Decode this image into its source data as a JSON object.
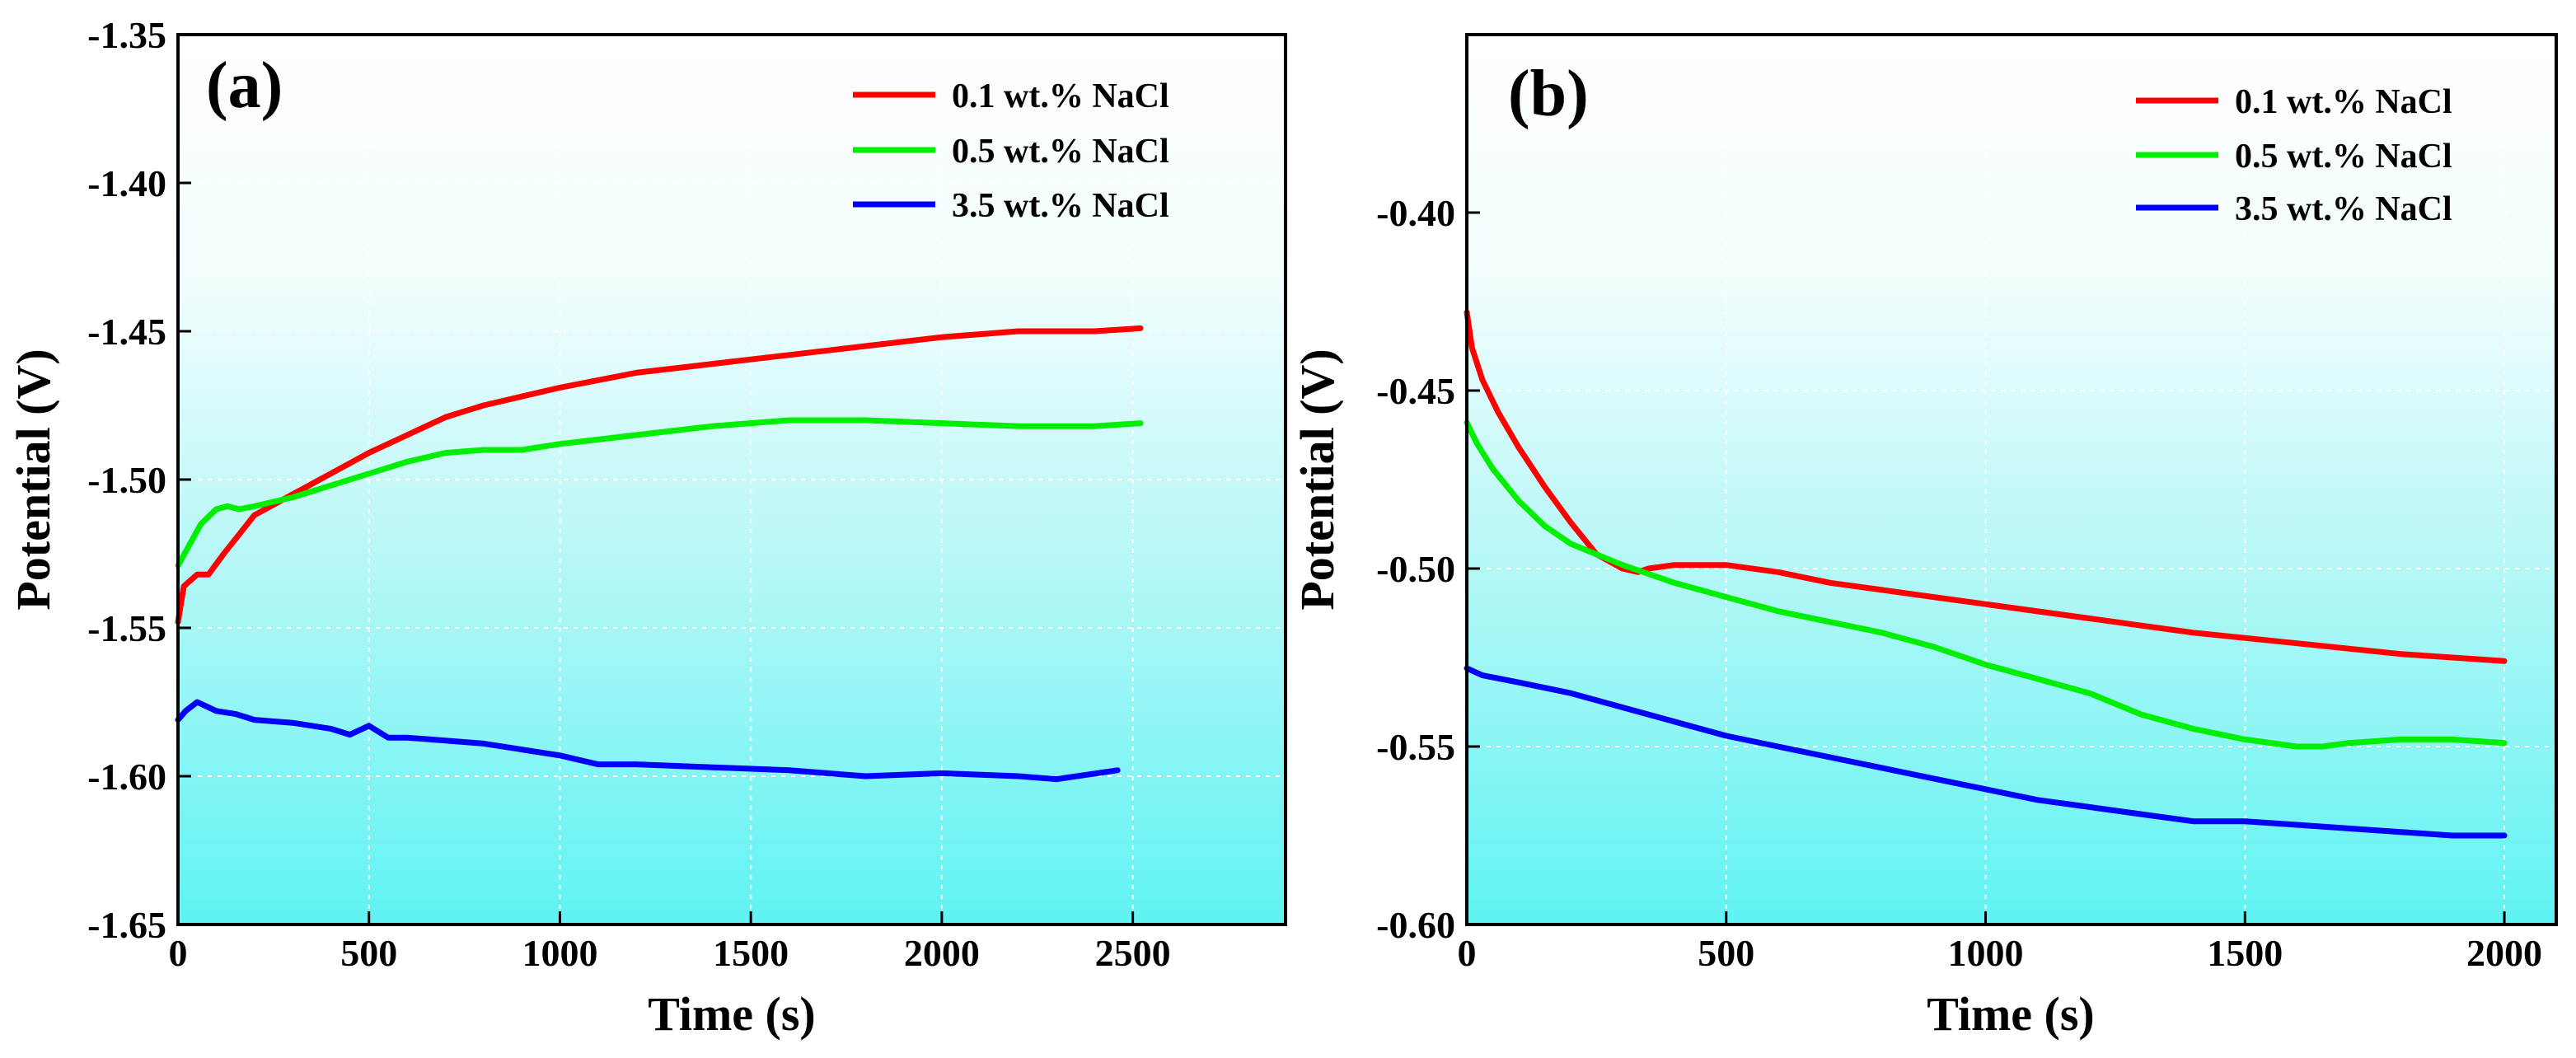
{
  "chart_data": [
    {
      "panel": "(a)",
      "type": "line",
      "xlabel": "Time (s)",
      "ylabel": "Potential (V)",
      "xlim": [
        0,
        2900
      ],
      "ylim": [
        -1.65,
        -1.35
      ],
      "xticks": [
        0,
        500,
        1000,
        1500,
        2000,
        2500
      ],
      "yticks": [
        -1.65,
        -1.6,
        -1.55,
        -1.5,
        -1.45,
        -1.4,
        -1.35
      ],
      "xtick_labels": [
        "0",
        "500",
        "1000",
        "1500",
        "2000",
        "2500"
      ],
      "ytick_labels": [
        "-1.65",
        "-1.60",
        "-1.55",
        "-1.50",
        "-1.45",
        "-1.40",
        "-1.35"
      ],
      "grid": true,
      "legend_position": "top-right",
      "series": [
        {
          "name": "0.1 wt.% NaCl",
          "color": "#ff0000",
          "x": [
            0,
            15,
            50,
            80,
            120,
            200,
            300,
            400,
            500,
            600,
            700,
            800,
            900,
            1000,
            1200,
            1400,
            1600,
            1800,
            2000,
            2200,
            2400,
            2520
          ],
          "y": [
            -1.548,
            -1.536,
            -1.532,
            -1.532,
            -1.525,
            -1.512,
            -1.505,
            -1.498,
            -1.491,
            -1.485,
            -1.479,
            -1.475,
            -1.472,
            -1.469,
            -1.464,
            -1.461,
            -1.458,
            -1.455,
            -1.452,
            -1.45,
            -1.45,
            -1.449
          ]
        },
        {
          "name": "0.5 wt.% NaCl",
          "color": "#00ee00",
          "x": [
            0,
            30,
            60,
            100,
            130,
            160,
            200,
            300,
            400,
            500,
            600,
            700,
            800,
            900,
            1000,
            1200,
            1400,
            1600,
            1800,
            2000,
            2200,
            2400,
            2520
          ],
          "y": [
            -1.529,
            -1.522,
            -1.515,
            -1.51,
            -1.509,
            -1.51,
            -1.509,
            -1.506,
            -1.502,
            -1.498,
            -1.494,
            -1.491,
            -1.49,
            -1.49,
            -1.488,
            -1.485,
            -1.482,
            -1.48,
            -1.48,
            -1.481,
            -1.482,
            -1.482,
            -1.481
          ]
        },
        {
          "name": "3.5 wt.% NaCl",
          "color": "#0000ff",
          "x": [
            0,
            20,
            50,
            100,
            150,
            200,
            300,
            400,
            450,
            500,
            550,
            600,
            700,
            800,
            900,
            1000,
            1100,
            1200,
            1400,
            1600,
            1800,
            2000,
            2200,
            2300,
            2460
          ],
          "y": [
            -1.581,
            -1.578,
            -1.575,
            -1.578,
            -1.579,
            -1.581,
            -1.582,
            -1.584,
            -1.586,
            -1.583,
            -1.587,
            -1.587,
            -1.588,
            -1.589,
            -1.591,
            -1.593,
            -1.596,
            -1.596,
            -1.597,
            -1.598,
            -1.6,
            -1.599,
            -1.6,
            -1.601,
            -1.598
          ]
        }
      ]
    },
    {
      "panel": "(b)",
      "type": "line",
      "xlabel": "Time (s)",
      "ylabel": "Potential (V)",
      "xlim": [
        0,
        2100
      ],
      "ylim": [
        -0.6,
        -0.35
      ],
      "xticks": [
        0,
        500,
        1000,
        1500,
        2000
      ],
      "yticks": [
        -0.6,
        -0.55,
        -0.5,
        -0.45,
        -0.4
      ],
      "xtick_labels": [
        "0",
        "500",
        "1000",
        "1500",
        "2000"
      ],
      "ytick_labels": [
        "-0.60",
        "-0.55",
        "-0.50",
        "-0.45",
        "-0.40"
      ],
      "grid": true,
      "legend_position": "top-right",
      "series": [
        {
          "name": "0.1 wt.% NaCl",
          "color": "#ff0000",
          "x": [
            0,
            10,
            30,
            60,
            100,
            150,
            200,
            250,
            300,
            330,
            350,
            400,
            450,
            500,
            600,
            700,
            800,
            900,
            1000,
            1200,
            1400,
            1600,
            1800,
            2000
          ],
          "y": [
            -0.428,
            -0.438,
            -0.447,
            -0.456,
            -0.466,
            -0.477,
            -0.487,
            -0.496,
            -0.5,
            -0.501,
            -0.5,
            -0.499,
            -0.499,
            -0.499,
            -0.501,
            -0.504,
            -0.506,
            -0.508,
            -0.51,
            -0.514,
            -0.518,
            -0.521,
            -0.524,
            -0.526
          ]
        },
        {
          "name": "0.5 wt.% NaCl",
          "color": "#00ee00",
          "x": [
            0,
            20,
            50,
            100,
            150,
            200,
            300,
            400,
            500,
            600,
            700,
            800,
            900,
            1000,
            1100,
            1200,
            1300,
            1400,
            1500,
            1600,
            1650,
            1700,
            1800,
            1900,
            2000
          ],
          "y": [
            -0.459,
            -0.465,
            -0.472,
            -0.481,
            -0.488,
            -0.493,
            -0.499,
            -0.504,
            -0.508,
            -0.512,
            -0.515,
            -0.518,
            -0.522,
            -0.527,
            -0.531,
            -0.535,
            -0.541,
            -0.545,
            -0.548,
            -0.55,
            -0.55,
            -0.549,
            -0.548,
            -0.548,
            -0.549
          ]
        },
        {
          "name": "3.5 wt.% NaCl",
          "color": "#0000ff",
          "x": [
            0,
            30,
            100,
            200,
            300,
            400,
            500,
            600,
            700,
            800,
            900,
            1000,
            1100,
            1200,
            1300,
            1400,
            1500,
            1600,
            1700,
            1800,
            1900,
            2000
          ],
          "y": [
            -0.528,
            -0.53,
            -0.532,
            -0.535,
            -0.539,
            -0.543,
            -0.547,
            -0.55,
            -0.553,
            -0.556,
            -0.559,
            -0.562,
            -0.565,
            -0.567,
            -0.569,
            -0.571,
            -0.571,
            -0.572,
            -0.573,
            -0.574,
            -0.575,
            -0.575
          ]
        }
      ]
    }
  ]
}
